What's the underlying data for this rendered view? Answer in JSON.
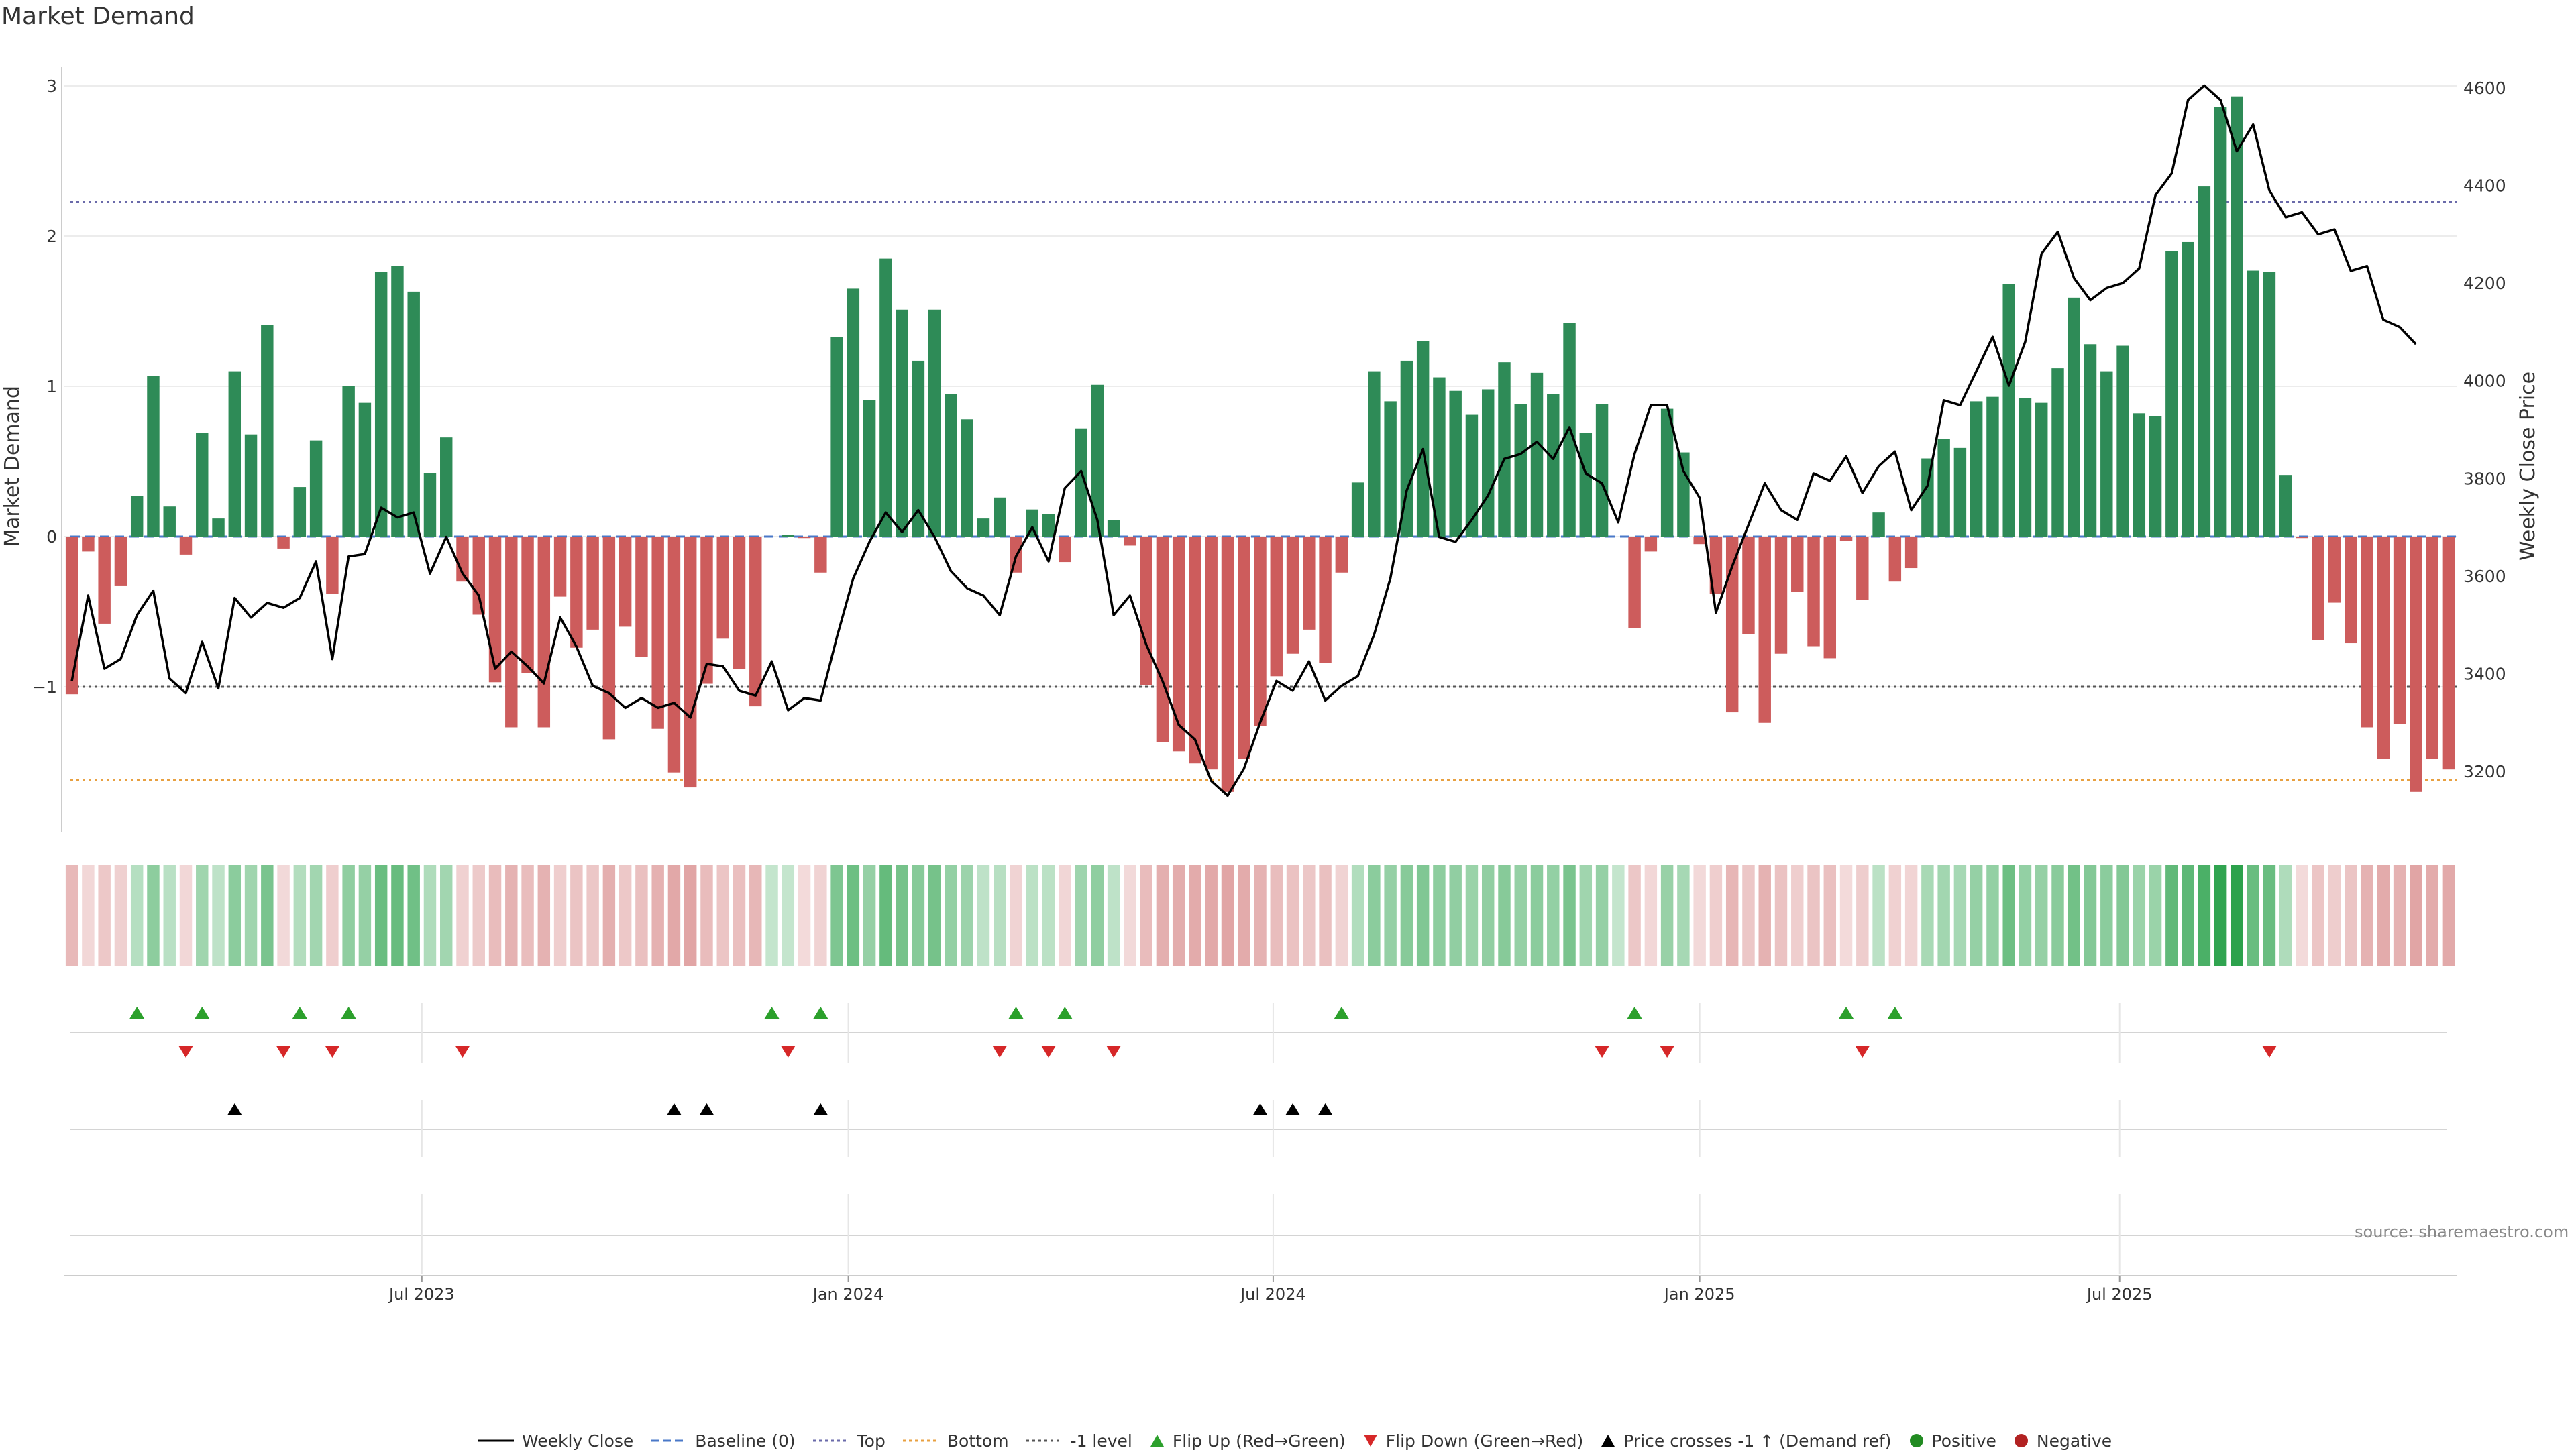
{
  "title": "Market Demand",
  "source": "source: sharemaestro.com",
  "colors": {
    "positive": "#2e8b57",
    "negative": "#cd5c5c",
    "price": "#000000",
    "baseline": "#4a78c8",
    "top": "#6a6aaa",
    "bottom": "#e8a040",
    "minus_one": "#555555",
    "flip_up": "#2ca02c",
    "flip_down": "#d62728",
    "cross": "#000000",
    "heat_pos_dark": "#2ca24c",
    "heat_neg": "#cc6666"
  },
  "legend": [
    {
      "label": "Weekly Close",
      "symbol": "line-icon",
      "color": "#000000"
    },
    {
      "label": "Baseline (0)",
      "symbol": "dash-line-icon",
      "color": "#4a78c8"
    },
    {
      "label": "Top",
      "symbol": "dot-line-icon",
      "color": "#6a6aaa"
    },
    {
      "label": "Bottom",
      "symbol": "dot-line-icon",
      "color": "#e8a040"
    },
    {
      "label": "-1 level",
      "symbol": "dot-line-icon",
      "color": "#555555"
    },
    {
      "label": "Flip Up (Red→Green)",
      "symbol": "triangle-up-icon",
      "color": "#2ca02c"
    },
    {
      "label": "Flip Down (Green→Red)",
      "symbol": "triangle-down-icon",
      "color": "#d62728"
    },
    {
      "label": "Price crosses -1 ↑ (Demand ref)",
      "symbol": "triangle-up-icon",
      "color": "#000000"
    },
    {
      "label": "Positive",
      "symbol": "circle-icon",
      "color": "#228b22"
    },
    {
      "label": "Negative",
      "symbol": "circle-icon",
      "color": "#b22222"
    }
  ],
  "chart_data": {
    "type": "bar+line",
    "title": "Market Demand",
    "ylabel_left": "Market Demand",
    "ylabel_right": "Weekly Close Price",
    "ylim_left": [
      -2.0,
      3.1
    ],
    "ylim_right": [
      3100,
      4620
    ],
    "yticks_left": [
      3,
      2,
      1,
      0,
      -1
    ],
    "yticks_left_labels": [
      "3",
      "2",
      "1",
      "0",
      "−1"
    ],
    "yticks_right": [
      4600,
      4400,
      4200,
      4000,
      3800,
      3600,
      3400,
      3200
    ],
    "x_start_week": 0,
    "x_end_week": 144,
    "x_ticks": [
      {
        "label": "Jul 2023",
        "week": 22
      },
      {
        "label": "Jan 2024",
        "week": 48.2
      },
      {
        "label": "Jul 2024",
        "week": 74.3
      },
      {
        "label": "Jan 2025",
        "week": 100.5
      },
      {
        "label": "Jul 2025",
        "week": 126.3
      }
    ],
    "reference_lines": {
      "baseline": 0,
      "top": 2.23,
      "bottom": -1.62,
      "minus_one": -1.0
    },
    "demand": [
      -1.05,
      -0.1,
      -0.58,
      -0.33,
      0.27,
      1.07,
      0.2,
      -0.12,
      0.69,
      0.12,
      1.1,
      0.68,
      1.41,
      -0.08,
      0.33,
      0.64,
      -0.38,
      1.0,
      0.89,
      1.76,
      1.8,
      1.63,
      0.42,
      0.66,
      -0.3,
      -0.52,
      -0.97,
      -1.27,
      -0.91,
      -1.27,
      -0.4,
      -0.74,
      -0.62,
      -1.35,
      -0.6,
      -0.8,
      -1.28,
      -1.57,
      -1.67,
      -0.98,
      -0.68,
      -0.88,
      -1.13,
      0.0,
      0.01,
      -0.01,
      -0.24,
      1.33,
      1.65,
      0.91,
      1.85,
      1.51,
      1.17,
      1.51,
      0.95,
      0.78,
      0.12,
      0.26,
      -0.24,
      0.18,
      0.15,
      -0.17,
      0.72,
      1.01,
      0.11,
      -0.06,
      -0.99,
      -1.37,
      -1.43,
      -1.51,
      -1.55,
      -1.7,
      -1.48,
      -1.26,
      -0.93,
      -0.78,
      -0.62,
      -0.84,
      -0.24,
      0.36,
      1.1,
      0.9,
      1.17,
      1.3,
      1.06,
      0.97,
      0.81,
      0.98,
      1.16,
      0.88,
      1.09,
      0.95,
      1.42,
      0.69,
      0.88,
      0.0,
      -0.61,
      -0.1,
      0.85,
      0.56,
      -0.05,
      -0.38,
      -1.17,
      -0.65,
      -1.24,
      -0.78,
      -0.37,
      -0.73,
      -0.81,
      -0.03,
      -0.42,
      0.16,
      -0.3,
      -0.21,
      0.52,
      0.65,
      0.59,
      0.9,
      0.93,
      1.68,
      0.92,
      0.89,
      1.12,
      1.59,
      1.28,
      1.1,
      1.27,
      0.82,
      0.8,
      1.9,
      1.96,
      2.33,
      2.86,
      2.93,
      1.77,
      1.76,
      0.41,
      -0.01,
      -0.69,
      -0.44,
      -0.71,
      -1.27,
      -1.48,
      -1.25,
      -1.7,
      -1.48,
      -1.55
    ],
    "weekly_close": [
      3385,
      3560,
      3410,
      3430,
      3520,
      3570,
      3390,
      3360,
      3465,
      3370,
      3555,
      3515,
      3545,
      3535,
      3555,
      3630,
      3430,
      3640,
      3645,
      3740,
      3720,
      3730,
      3605,
      3680,
      3605,
      3560,
      3410,
      3445,
      3415,
      3380,
      3515,
      3455,
      3375,
      3360,
      3330,
      3350,
      3330,
      3340,
      3310,
      3420,
      3415,
      3365,
      3355,
      3425,
      3325,
      3350,
      3345,
      3475,
      3595,
      3670,
      3730,
      3690,
      3735,
      3680,
      3610,
      3575,
      3560,
      3520,
      3640,
      3700,
      3630,
      3780,
      3815,
      3715,
      3520,
      3560,
      3460,
      3385,
      3295,
      3265,
      3180,
      3150,
      3205,
      3300,
      3385,
      3365,
      3425,
      3345,
      3375,
      3395,
      3480,
      3595,
      3775,
      3860,
      3680,
      3670,
      3715,
      3765,
      3840,
      3850,
      3875,
      3840,
      3905,
      3810,
      3790,
      3710,
      3850,
      3950,
      3950,
      3815,
      3760,
      3525,
      3620,
      3705,
      3790,
      3735,
      3715,
      3810,
      3795,
      3845,
      3770,
      3825,
      3855,
      3735,
      3785,
      3960,
      3950,
      4020,
      4090,
      3990,
      4080,
      4260,
      4305,
      4210,
      4165,
      4190,
      4200,
      4230,
      4380,
      4425,
      4575,
      4605,
      4575,
      4470,
      4525,
      4390,
      4335,
      4345,
      4300,
      4310,
      4225,
      4235,
      4125,
      4110,
      4075
    ],
    "flip_up_weeks": [
      4,
      8,
      14,
      17,
      43,
      46,
      58,
      61,
      78,
      96,
      109,
      112
    ],
    "flip_down_weeks": [
      7,
      13,
      16,
      24,
      44,
      57,
      60,
      64,
      94,
      98,
      110,
      135
    ],
    "price_cross_weeks": [
      10,
      37,
      39,
      46,
      73,
      75,
      77
    ]
  }
}
